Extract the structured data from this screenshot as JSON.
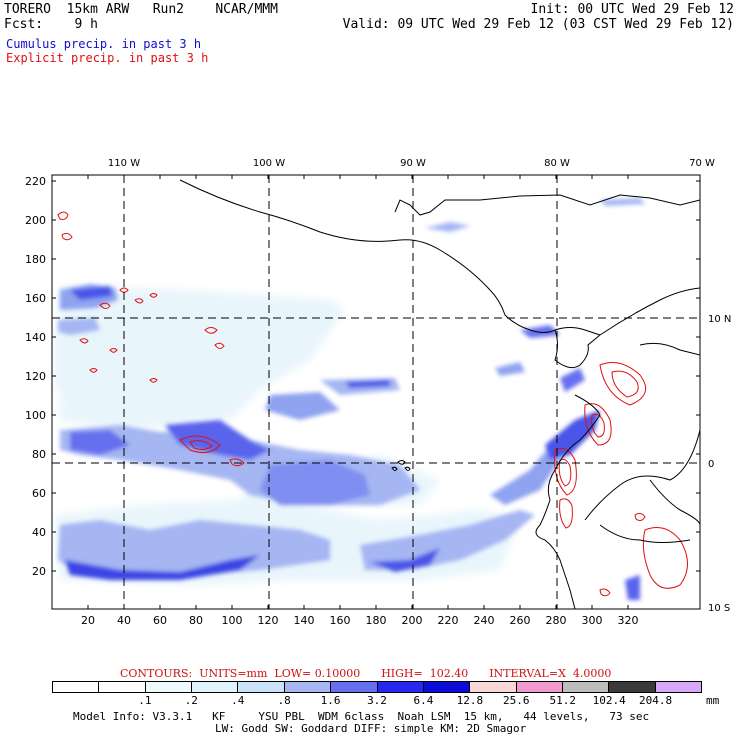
{
  "header": {
    "title_line": "TORERO  15km ARW   Run2    NCAR/MMM",
    "fcst_line": "Fcst:    9 h",
    "init_line": "Init: 00 UTC Wed 29 Feb 12",
    "valid_line": "Valid: 09 UTC Wed 29 Feb 12 (03 CST Wed 29 Feb 12)",
    "cumulus_label": "Cumulus precip. in past 3 h",
    "explicit_label": "Explicit precip. in past 3 h"
  },
  "colors": {
    "cumulus_text": "#1010c8",
    "explicit_text": "#e01010",
    "contour": "#e01010"
  },
  "map": {
    "top_lon_labels": [
      "110 W",
      "100 W",
      "90 W",
      "80 W",
      "70 W"
    ],
    "right_lat_labels": [
      "10 N",
      "0",
      "10 S"
    ],
    "left_y_ticks": [
      "20",
      "40",
      "60",
      "80",
      "100",
      "120",
      "140",
      "160",
      "180",
      "200",
      "220"
    ],
    "bottom_x_ticks": [
      "20",
      "40",
      "60",
      "80",
      "100",
      "120",
      "140",
      "160",
      "180",
      "200",
      "220",
      "240",
      "260",
      "280",
      "300",
      "320"
    ],
    "gridlines": "dashed"
  },
  "contour_info": {
    "text": "CONTOURS:  UNITS=mm  LOW= 0.10000      HIGH=  102.40      INTERVAL=X  4.0000",
    "units": "mm",
    "low": 0.1,
    "high": 102.4,
    "interval_factor": 4.0
  },
  "color_scale": {
    "labels": [
      ".1",
      ".2",
      ".4",
      ".8",
      "1.6",
      "3.2",
      "6.4",
      "12.8",
      "25.6",
      "51.2",
      "102.4",
      "204.8"
    ],
    "unit": "mm",
    "colors": [
      "#ffffff",
      "#ffffff",
      "#eefbfd",
      "#e2f4fb",
      "#cbe3f9",
      "#a5b6f3",
      "#6670ee",
      "#2727f2",
      "#0c0cd9",
      "#fad7d7",
      "#f09ad0",
      "#bdbdbd",
      "#3a3a3a",
      "#d7a7f8"
    ]
  },
  "footer": {
    "model_info_1": "Model Info: V3.3.1   KF     YSU PBL  WDM 6class  Noah LSM  15 km,   44 levels,   73 sec",
    "model_info_2": "LW: Godd SW: Goddard DIFF: simple KM: 2D Smagor"
  }
}
